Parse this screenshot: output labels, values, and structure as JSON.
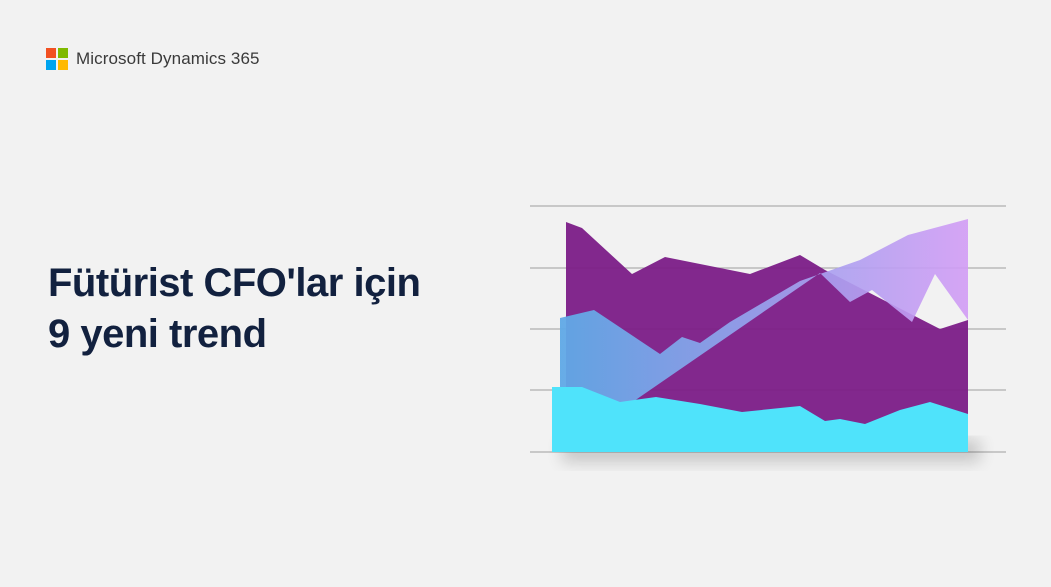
{
  "brand": {
    "name": "Microsoft Dynamics 365",
    "logo_colors": [
      "#f25022",
      "#7fba00",
      "#00a4ef",
      "#ffb900"
    ]
  },
  "headline": {
    "line1": "Fütürist CFO'lar için",
    "line2": "9 yeni trend"
  },
  "illustration": {
    "type": "area",
    "gridlines": 5,
    "colors": {
      "purple": "#7b1c87",
      "lavender": "#c89af0",
      "cyan": "#4fe3fb",
      "grid": "#b0b0b0"
    }
  }
}
